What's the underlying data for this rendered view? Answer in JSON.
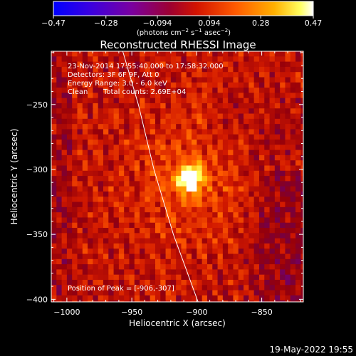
{
  "chart_data": {
    "type": "heatmap",
    "title": "Reconstructed RHESSI Image",
    "xlabel": "Heliocentric X (arcsec)",
    "ylabel": "Heliocentric Y (arcsec)",
    "xlim": [
      -1012,
      -818
    ],
    "ylim": [
      -402,
      -209
    ],
    "x_ticks": [
      -1000,
      -950,
      -900,
      -850
    ],
    "x_tick_labels": [
      "−1000",
      "−950",
      "−900",
      "−850"
    ],
    "y_ticks": [
      -250,
      -300,
      -350,
      -400
    ],
    "y_tick_labels": [
      "−250",
      "−300",
      "−350",
      "−400"
    ],
    "grid": false,
    "colorbar": {
      "location": "top",
      "min": -0.47,
      "max": 0.47,
      "ticks": [
        -0.47,
        -0.28,
        -0.094,
        0.094,
        0.28,
        0.47
      ],
      "tick_labels": [
        "−0.47",
        "−0.28",
        "−0.094",
        "0.094",
        "0.28",
        "0.47"
      ],
      "unit_label": {
        "prefix": "(photons cm",
        "exp1": "−2",
        "mid1": " s",
        "exp2": "−1",
        "mid2": " asec",
        "exp3": "−2",
        "suffix": ")"
      }
    },
    "annotations": {
      "time_range": "23-Nov-2014 17:55:40.000 to 17:58:32.000",
      "detectors": "Detectors: 3F 6F 9F, Att 0",
      "energy_range": "Energy Range: 3.0 - 6.0 keV",
      "clean": "Clean",
      "total_counts": "Total counts: 2.69E+04",
      "peak_position": "Position of Peak = [-906,-307]"
    },
    "peak": {
      "x": -906,
      "y": -307,
      "value": 0.47
    },
    "limb_curve": [
      {
        "x": -957,
        "y": -209
      },
      {
        "x": -945,
        "y": -250
      },
      {
        "x": -933,
        "y": -300
      },
      {
        "x": -918,
        "y": -350
      },
      {
        "x": -899,
        "y": -402
      }
    ]
  },
  "footer": {
    "date": "19-May-2022 19:55"
  },
  "colors": {
    "background": "#000000",
    "foreground": "#ffffff",
    "colormap": [
      "#0000ff",
      "#4a00d0",
      "#7a00a0",
      "#9e0030",
      "#d21300",
      "#ff7000",
      "#ffd000",
      "#ffffff"
    ]
  }
}
